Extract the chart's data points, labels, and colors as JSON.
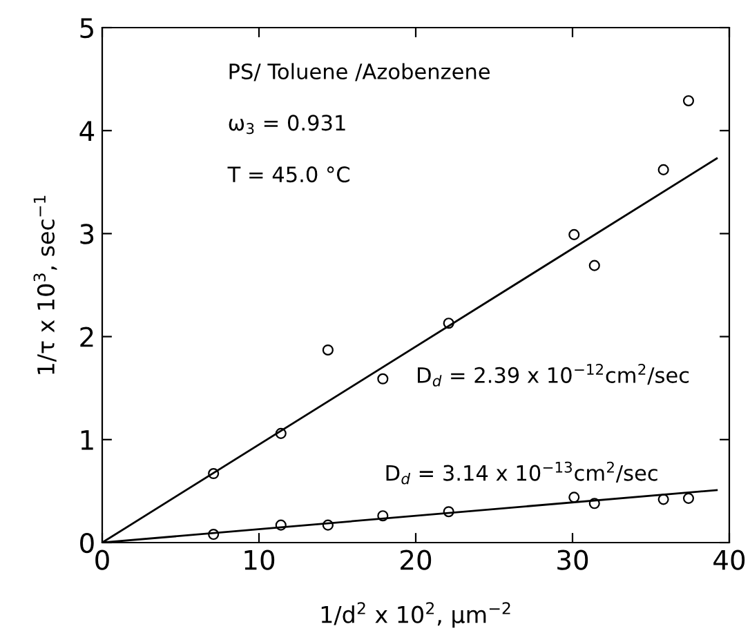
{
  "chart_data": {
    "type": "scatter",
    "xlabel": "1/d$^{2}$ x 10$^{2}$, μm$^{−2}$",
    "ylabel": "1/τ x 10$^{3}$, sec$^{−1}$",
    "xlim": [
      0,
      40
    ],
    "ylim": [
      0,
      5
    ],
    "xticks": [
      0,
      10,
      20,
      30,
      40
    ],
    "yticks": [
      0,
      1,
      2,
      3,
      4,
      5
    ],
    "marker": "circle",
    "grid": false,
    "legend": false,
    "series": [
      {
        "color": "#000000",
        "x": [
          7.1,
          11.4,
          14.4,
          17.9,
          22.1,
          30.1,
          31.4,
          35.8,
          37.4
        ],
        "values": [
          0.67,
          1.06,
          1.87,
          1.59,
          2.13,
          2.99,
          2.69,
          3.62,
          4.29
        ]
      },
      {
        "color": "#000000",
        "x": [
          7.1,
          11.4,
          14.4,
          17.9,
          22.1,
          30.1,
          31.4,
          35.8,
          37.4
        ],
        "values": [
          0.08,
          0.17,
          0.17,
          0.26,
          0.3,
          0.44,
          0.38,
          0.42,
          0.43
        ]
      },
      {
        "type": "line",
        "color": "#000000",
        "marker": "none",
        "x": [
          0,
          39.2
        ],
        "values": [
          0,
          3.73
        ]
      },
      {
        "type": "line",
        "color": "#000000",
        "marker": "none",
        "x": [
          0,
          39.2
        ],
        "values": [
          0,
          0.51
        ]
      }
    ],
    "annotations": [
      "PS/ Toluene /Azobenzene",
      "ω$_{3}$ = 0.931",
      "T = 45.0 °C",
      "D$_{d}$ = 2.39 x 10$^{−12}$cm$^{2}$/sec",
      "D$_{d}$ = 3.14 x 10$^{−13}$cm$^{2}$/sec"
    ]
  }
}
